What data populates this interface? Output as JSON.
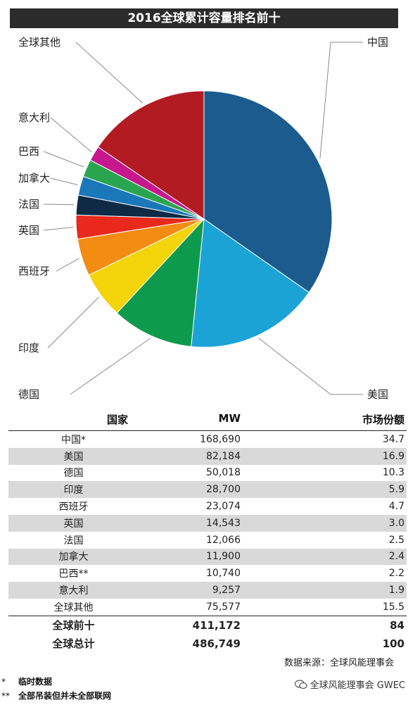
{
  "chart_data": {
    "type": "pie",
    "title": "2016全球累计容量排名前十",
    "slices": [
      {
        "label": "中国",
        "value": 34.7,
        "color": "#1b5b8e"
      },
      {
        "label": "美国",
        "value": 16.9,
        "color": "#1ba3d6"
      },
      {
        "label": "德国",
        "value": 10.3,
        "color": "#0e9a4d"
      },
      {
        "label": "印度",
        "value": 5.9,
        "color": "#f4d40a"
      },
      {
        "label": "西班牙",
        "value": 4.7,
        "color": "#f28c13"
      },
      {
        "label": "英国",
        "value": 3.0,
        "color": "#e8291c"
      },
      {
        "label": "法国",
        "value": 2.5,
        "color": "#0f2a45"
      },
      {
        "label": "加拿大",
        "value": 2.4,
        "color": "#1a77b8"
      },
      {
        "label": "巴西",
        "value": 2.2,
        "color": "#2aa54f"
      },
      {
        "label": "意大利",
        "value": 1.9,
        "color": "#c7178d"
      },
      {
        "label": "全球其他",
        "value": 15.5,
        "color": "#b31b22"
      }
    ]
  },
  "table": {
    "headers": [
      "国家",
      "MW",
      "市场份额"
    ],
    "rows": [
      {
        "country": "中国*",
        "mw": "168,690",
        "share": "34.7"
      },
      {
        "country": "美国",
        "mw": "82,184",
        "share": "16.9"
      },
      {
        "country": "德国",
        "mw": "50,018",
        "share": "10.3"
      },
      {
        "country": "印度",
        "mw": "28,700",
        "share": "5.9"
      },
      {
        "country": "西班牙",
        "mw": "23,074",
        "share": "4.7"
      },
      {
        "country": "英国",
        "mw": "14,543",
        "share": "3.0"
      },
      {
        "country": "法国",
        "mw": "12,066",
        "share": "2.5"
      },
      {
        "country": "加拿大",
        "mw": "11,900",
        "share": "2.4"
      },
      {
        "country": "巴西**",
        "mw": "10,740",
        "share": "2.2"
      },
      {
        "country": "意大利",
        "mw": "9,257",
        "share": "1.9"
      },
      {
        "country": "全球其他",
        "mw": "75,577",
        "share": "15.5"
      }
    ],
    "top10": {
      "label": "全球前十",
      "mw": "411,172",
      "share": "84"
    },
    "total": {
      "label": "全球总计",
      "mw": "486,749",
      "share": "100"
    }
  },
  "source": "数据来源：全球风能理事会",
  "notes": [
    {
      "mark": "*",
      "text": "临时数据"
    },
    {
      "mark": "**",
      "text": "全部吊装但并未全部联网"
    }
  ],
  "watermark": "全球风能理事会 GWEC"
}
